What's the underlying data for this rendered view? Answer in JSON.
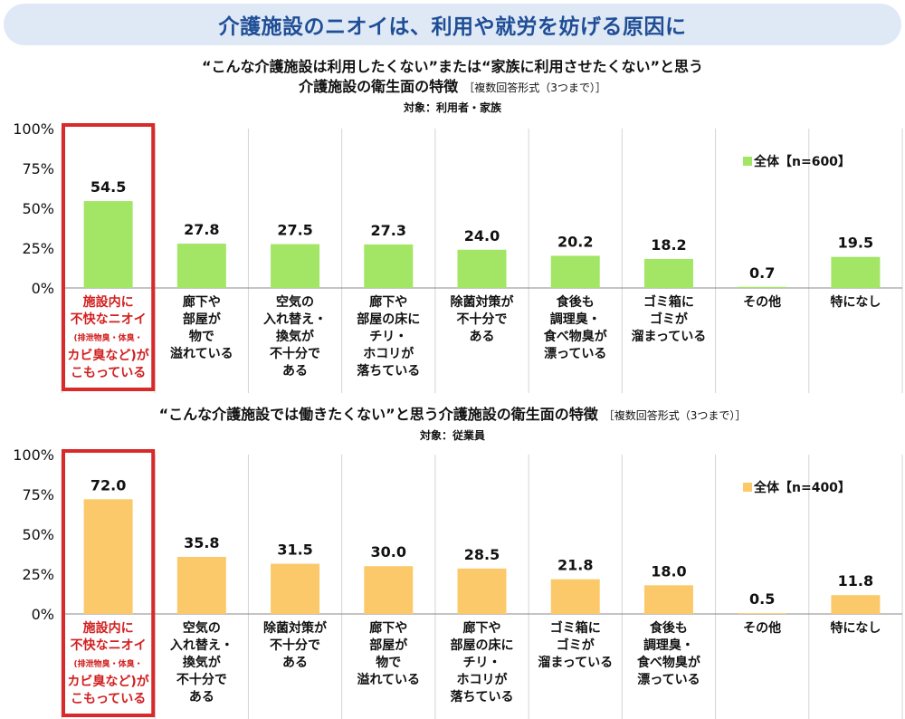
{
  "banner": {
    "title": "介護施設のニオイは、利用や就労を妨げる原因に"
  },
  "chart_data": [
    {
      "type": "bar",
      "title_line1": "“こんな介護施設は利用したくない”または“家族に利用させたくない”と思う",
      "title_line2": "介護施設の衛生面の特徴",
      "note": "［複数回答形式（3つまで）］",
      "target": "対象：利用者・家族",
      "legend": "全体【n=600】",
      "color": "#a3e565",
      "highlight_color": "#d82a2a",
      "highlight_index": 0,
      "yticks": [
        "0%",
        "25%",
        "50%",
        "75%",
        "100%"
      ],
      "ylim": [
        0,
        100
      ],
      "categories": [
        [
          "施設内に",
          "不快なニオイ",
          "(排泄物臭・体臭・",
          "カビ臭など)が",
          "こもっている"
        ],
        [
          "廊下や",
          "部屋が",
          "物で",
          "溢れている"
        ],
        [
          "空気の",
          "入れ替え・",
          "換気が",
          "不十分で",
          "ある"
        ],
        [
          "廊下や",
          "部屋の床に",
          "チリ・",
          "ホコリが",
          "落ちている"
        ],
        [
          "除菌対策が",
          "不十分で",
          "ある"
        ],
        [
          "食後も",
          "調理臭・",
          "食べ物臭が",
          "漂っている"
        ],
        [
          "ゴミ箱に",
          "ゴミが",
          "溜まっている"
        ],
        [
          "その他"
        ],
        [
          "特になし"
        ]
      ],
      "values": [
        54.5,
        27.8,
        27.5,
        27.3,
        24.0,
        20.2,
        18.2,
        0.7,
        19.5
      ],
      "labels": [
        "54.5",
        "27.8",
        "27.5",
        "27.3",
        "24.0",
        "20.2",
        "18.2",
        "0.7",
        "19.5"
      ]
    },
    {
      "type": "bar",
      "title_line1": "“こんな介護施設では働きたくない”と思う介護施設の衛生面の特徴",
      "title_line2": "",
      "note": "［複数回答形式（3つまで）］",
      "target": "対象：従業員",
      "legend": "全体【n=400】",
      "color": "#fcc96a",
      "highlight_color": "#d82a2a",
      "highlight_index": 0,
      "yticks": [
        "0%",
        "25%",
        "50%",
        "75%",
        "100%"
      ],
      "ylim": [
        0,
        100
      ],
      "categories": [
        [
          "施設内に",
          "不快なニオイ",
          "(排泄物臭・体臭・",
          "カビ臭など)が",
          "こもっている"
        ],
        [
          "空気の",
          "入れ替え・",
          "換気が",
          "不十分で",
          "ある"
        ],
        [
          "除菌対策が",
          "不十分で",
          "ある"
        ],
        [
          "廊下や",
          "部屋が",
          "物で",
          "溢れている"
        ],
        [
          "廊下や",
          "部屋の床に",
          "チリ・",
          "ホコリが",
          "落ちている"
        ],
        [
          "ゴミ箱に",
          "ゴミが",
          "溜まっている"
        ],
        [
          "食後も",
          "調理臭・",
          "食べ物臭が",
          "漂っている"
        ],
        [
          "その他"
        ],
        [
          "特になし"
        ]
      ],
      "values": [
        72.0,
        35.8,
        31.5,
        30.0,
        28.5,
        21.8,
        18.0,
        0.5,
        11.8
      ],
      "labels": [
        "72.0",
        "35.8",
        "31.5",
        "30.0",
        "28.5",
        "21.8",
        "18.0",
        "0.5",
        "11.8"
      ]
    }
  ]
}
